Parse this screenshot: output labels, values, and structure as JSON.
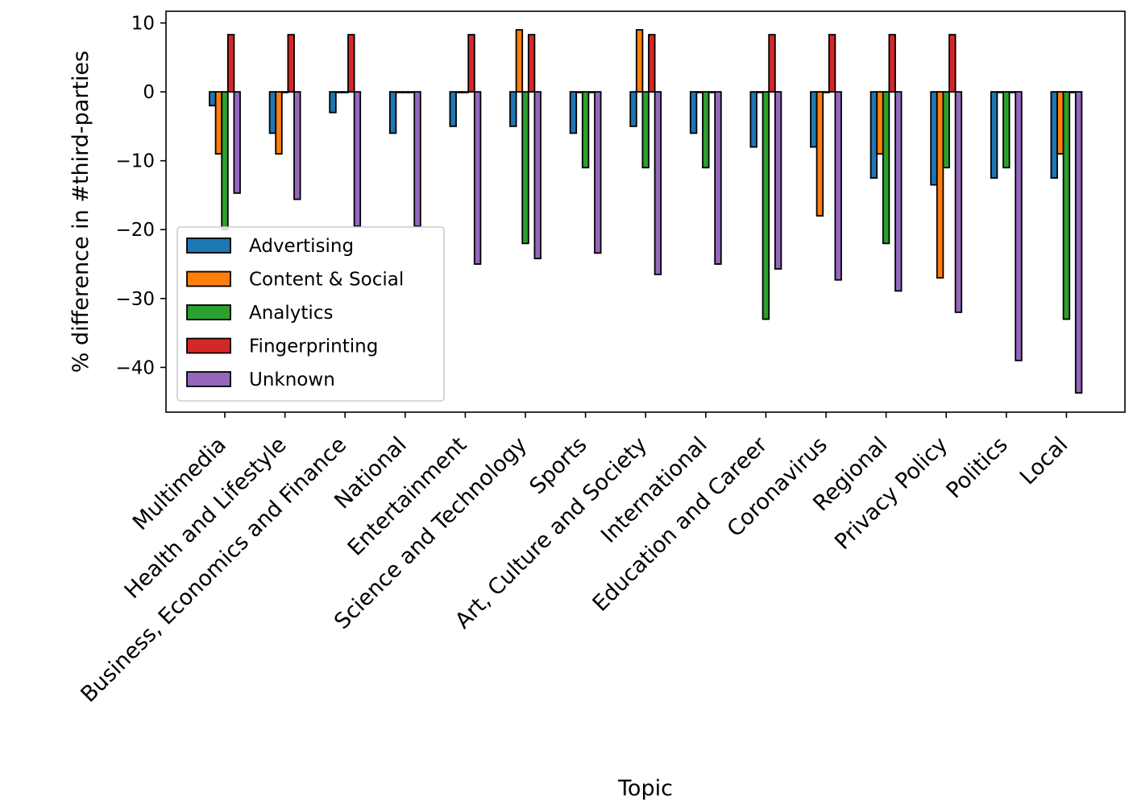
{
  "chart_data": {
    "type": "bar",
    "title": "",
    "xlabel": "Topic",
    "ylabel": "% difference in #third-parties",
    "ylim": [
      -46.5,
      11.7
    ],
    "yticks": [
      10,
      0,
      -10,
      -20,
      -30,
      -40
    ],
    "ytick_labels": [
      "10",
      "0",
      "−10",
      "−20",
      "−30",
      "−40"
    ],
    "grid": false,
    "legend_position": "lower-left",
    "categories": [
      "Multimedia",
      "Health and Lifestyle",
      "Business, Economics and Finance",
      "National",
      "Entertainment",
      "Science and Technology",
      "Sports",
      "Art, Culture and Society",
      "International",
      "Education and Career",
      "Coronavirus",
      "Regional",
      "Privacy Policy",
      "Politics",
      "Local"
    ],
    "series": [
      {
        "name": "Advertising",
        "color": "#1f77b4",
        "values": [
          -2,
          -6,
          -3,
          -6,
          -5,
          -5,
          -6,
          -5,
          -6,
          -8,
          -8,
          -12.5,
          -13.5,
          -12.5,
          -12.5
        ]
      },
      {
        "name": "Content & Social",
        "color": "#ff7f0e",
        "values": [
          -9,
          -9,
          0,
          0,
          0,
          9,
          0,
          9,
          0,
          0,
          -18,
          -9,
          -27,
          0,
          -9
        ]
      },
      {
        "name": "Analytics",
        "color": "#2ca02c",
        "values": [
          -20,
          0,
          0,
          0,
          0,
          -22,
          -11,
          -11,
          -11,
          -33,
          0,
          -22,
          -11,
          -11,
          -33
        ]
      },
      {
        "name": "Fingerprinting",
        "color": "#d62728",
        "values": [
          8.3,
          8.3,
          8.3,
          0,
          8.3,
          8.3,
          0,
          8.3,
          0,
          8.3,
          8.3,
          8.3,
          8.3,
          0,
          0
        ]
      },
      {
        "name": "Unknown",
        "color": "#9467bd",
        "values": [
          -14.7,
          -15.6,
          -19.5,
          -19.5,
          -25,
          -24.2,
          -23.4,
          -26.5,
          -25,
          -25.7,
          -27.3,
          -28.9,
          -32,
          -39,
          -43.7
        ]
      }
    ]
  }
}
